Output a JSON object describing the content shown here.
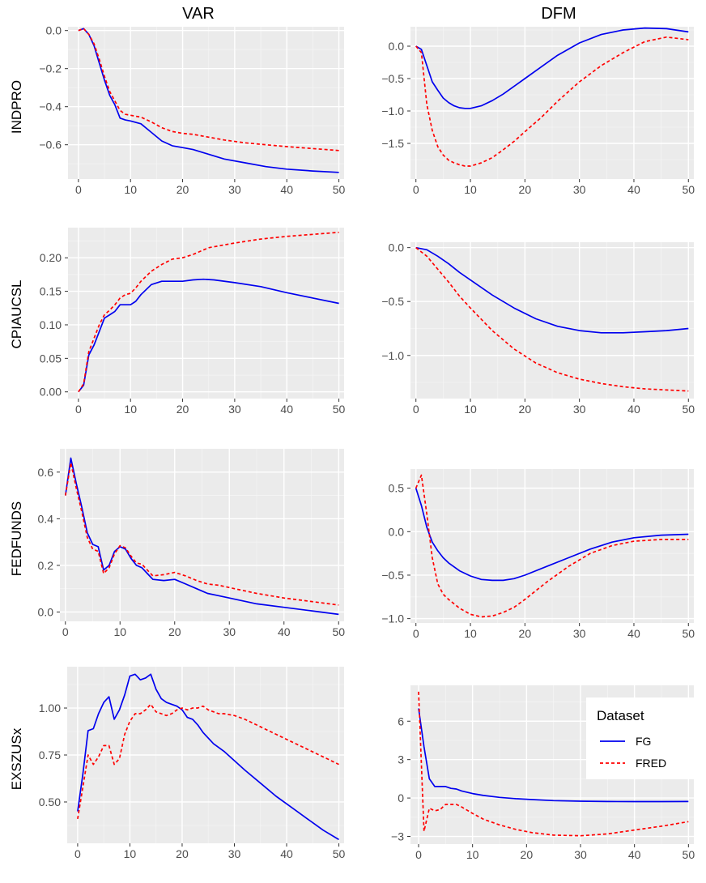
{
  "figure": {
    "columns": [
      "VAR",
      "DFM"
    ],
    "rows": [
      "INDPRO",
      "CPIAUCSL",
      "FEDFUNDS",
      "EXSZUSx"
    ]
  },
  "legend": {
    "title": "Dataset",
    "entries": [
      {
        "label": "FG",
        "color": "#0000ee",
        "dash": "solid"
      },
      {
        "label": "FRED",
        "color": "#ff0000",
        "dash": "dashed"
      }
    ]
  },
  "chart_data": [
    {
      "type": "line",
      "row": "INDPRO",
      "column": "VAR",
      "xlim": [
        -2,
        51
      ],
      "ylim": [
        -0.78,
        0.02
      ],
      "xticks": [
        0,
        10,
        20,
        30,
        40,
        50
      ],
      "xtick_labels": [
        "0",
        "10",
        "20",
        "30",
        "40",
        "50"
      ],
      "yticks": [
        0,
        -0.2,
        -0.4,
        -0.6
      ],
      "ytick_labels": [
        "0.0",
        "−0.2",
        "−0.4",
        "−0.6"
      ],
      "series": [
        {
          "name": "FG",
          "x": [
            0,
            1,
            2,
            3,
            4,
            5,
            6,
            7,
            8,
            9,
            10,
            12,
            14,
            16,
            18,
            20,
            22,
            25,
            28,
            32,
            36,
            40,
            45,
            50
          ],
          "y": [
            0,
            0.01,
            -0.02,
            -0.08,
            -0.17,
            -0.26,
            -0.34,
            -0.39,
            -0.46,
            -0.47,
            -0.475,
            -0.49,
            -0.535,
            -0.58,
            -0.605,
            -0.615,
            -0.625,
            -0.65,
            -0.675,
            -0.695,
            -0.715,
            -0.728,
            -0.738,
            -0.745
          ]
        },
        {
          "name": "FRED",
          "x": [
            0,
            1,
            2,
            3,
            4,
            5,
            6,
            7,
            8,
            9,
            10,
            12,
            14,
            16,
            18,
            20,
            22,
            25,
            28,
            32,
            36,
            40,
            45,
            50
          ],
          "y": [
            0,
            0.01,
            -0.02,
            -0.07,
            -0.15,
            -0.24,
            -0.32,
            -0.37,
            -0.42,
            -0.44,
            -0.445,
            -0.455,
            -0.48,
            -0.51,
            -0.53,
            -0.54,
            -0.545,
            -0.56,
            -0.575,
            -0.59,
            -0.6,
            -0.61,
            -0.62,
            -0.63
          ]
        }
      ]
    },
    {
      "type": "line",
      "row": "INDPRO",
      "column": "DFM",
      "xlim": [
        -1,
        51
      ],
      "ylim": [
        -2.05,
        0.3
      ],
      "xticks": [
        0,
        10,
        20,
        30,
        40,
        50
      ],
      "xtick_labels": [
        "0",
        "10",
        "20",
        "30",
        "40",
        "50"
      ],
      "yticks": [
        0,
        -0.5,
        -1,
        -1.5
      ],
      "ytick_labels": [
        "0.0",
        "−0.5",
        "−1.0",
        "−1.5"
      ],
      "series": [
        {
          "name": "FG",
          "x": [
            0,
            1,
            2,
            3,
            4,
            5,
            6,
            7,
            8,
            9,
            10,
            12,
            14,
            16,
            18,
            20,
            23,
            26,
            30,
            34,
            38,
            42,
            46,
            50
          ],
          "y": [
            0,
            -0.05,
            -0.3,
            -0.55,
            -0.68,
            -0.8,
            -0.87,
            -0.92,
            -0.95,
            -0.96,
            -0.96,
            -0.92,
            -0.84,
            -0.74,
            -0.62,
            -0.5,
            -0.32,
            -0.14,
            0.05,
            0.18,
            0.25,
            0.28,
            0.27,
            0.22
          ]
        },
        {
          "name": "FRED",
          "x": [
            0,
            1,
            2,
            3,
            4,
            5,
            6,
            7,
            8,
            9,
            10,
            12,
            14,
            16,
            18,
            20,
            23,
            26,
            30,
            34,
            38,
            42,
            46,
            50
          ],
          "y": [
            0,
            -0.1,
            -0.9,
            -1.3,
            -1.55,
            -1.68,
            -1.76,
            -1.8,
            -1.83,
            -1.85,
            -1.85,
            -1.8,
            -1.72,
            -1.6,
            -1.47,
            -1.32,
            -1.1,
            -0.85,
            -0.55,
            -0.3,
            -0.1,
            0.07,
            0.14,
            0.1
          ]
        }
      ]
    },
    {
      "type": "line",
      "row": "CPIAUCSL",
      "column": "VAR",
      "xlim": [
        -2,
        51
      ],
      "ylim": [
        -0.01,
        0.245
      ],
      "xticks": [
        0,
        10,
        20,
        30,
        40,
        50
      ],
      "xtick_labels": [
        "0",
        "10",
        "20",
        "30",
        "40",
        "50"
      ],
      "yticks": [
        0,
        0.05,
        0.1,
        0.15,
        0.2
      ],
      "ytick_labels": [
        "0.00",
        "0.05",
        "0.10",
        "0.15",
        "0.20"
      ],
      "series": [
        {
          "name": "FG",
          "x": [
            0,
            1,
            2,
            3,
            4,
            5,
            6,
            7,
            8,
            9,
            10,
            11,
            12,
            14,
            16,
            18,
            20,
            22,
            24,
            26,
            30,
            35,
            40,
            45,
            50
          ],
          "y": [
            0,
            0.01,
            0.055,
            0.07,
            0.09,
            0.11,
            0.115,
            0.12,
            0.13,
            0.13,
            0.13,
            0.135,
            0.145,
            0.16,
            0.165,
            0.165,
            0.165,
            0.167,
            0.168,
            0.167,
            0.163,
            0.157,
            0.148,
            0.14,
            0.132
          ]
        },
        {
          "name": "FRED",
          "x": [
            0,
            1,
            2,
            3,
            4,
            5,
            6,
            7,
            8,
            9,
            10,
            11,
            12,
            14,
            16,
            18,
            20,
            22,
            25,
            30,
            35,
            40,
            45,
            50
          ],
          "y": [
            0,
            0.012,
            0.06,
            0.08,
            0.1,
            0.115,
            0.122,
            0.13,
            0.14,
            0.145,
            0.147,
            0.155,
            0.165,
            0.18,
            0.19,
            0.198,
            0.2,
            0.205,
            0.215,
            0.222,
            0.228,
            0.232,
            0.235,
            0.238
          ]
        }
      ]
    },
    {
      "type": "line",
      "row": "CPIAUCSL",
      "column": "DFM",
      "xlim": [
        -1,
        51
      ],
      "ylim": [
        -1.4,
        0.05
      ],
      "xticks": [
        0,
        10,
        20,
        30,
        40,
        50
      ],
      "xtick_labels": [
        "0",
        "10",
        "20",
        "30",
        "40",
        "50"
      ],
      "yticks": [
        0,
        -0.5,
        -1
      ],
      "ytick_labels": [
        "0.0",
        "−0.5",
        "−1.0"
      ],
      "series": [
        {
          "name": "FG",
          "x": [
            0,
            2,
            4,
            6,
            8,
            10,
            14,
            18,
            22,
            26,
            30,
            34,
            38,
            42,
            46,
            50
          ],
          "y": [
            0,
            -0.02,
            -0.08,
            -0.15,
            -0.23,
            -0.3,
            -0.44,
            -0.56,
            -0.66,
            -0.73,
            -0.77,
            -0.79,
            -0.79,
            -0.78,
            -0.77,
            -0.75
          ]
        },
        {
          "name": "FRED",
          "x": [
            0,
            2,
            4,
            6,
            8,
            10,
            14,
            18,
            22,
            26,
            30,
            34,
            38,
            42,
            46,
            50
          ],
          "y": [
            0,
            -0.08,
            -0.2,
            -0.32,
            -0.45,
            -0.56,
            -0.77,
            -0.94,
            -1.07,
            -1.16,
            -1.22,
            -1.26,
            -1.29,
            -1.31,
            -1.32,
            -1.33
          ]
        }
      ]
    },
    {
      "type": "line",
      "row": "FEDFUNDS",
      "column": "VAR",
      "xlim": [
        -1,
        51
      ],
      "ylim": [
        -0.04,
        0.7
      ],
      "xticks": [
        0,
        10,
        20,
        30,
        40,
        50
      ],
      "xtick_labels": [
        "0",
        "10",
        "20",
        "30",
        "40",
        "50"
      ],
      "yticks": [
        0,
        0.2,
        0.4,
        0.6
      ],
      "ytick_labels": [
        "0.0",
        "0.2",
        "0.4",
        "0.6"
      ],
      "series": [
        {
          "name": "FG",
          "x": [
            0,
            1,
            2,
            3,
            4,
            5,
            6,
            7,
            8,
            9,
            10,
            11,
            12,
            13,
            14,
            15,
            16,
            18,
            20,
            22,
            24,
            26,
            28,
            30,
            35,
            40,
            45,
            50
          ],
          "y": [
            0.5,
            0.66,
            0.55,
            0.45,
            0.34,
            0.29,
            0.28,
            0.18,
            0.2,
            0.26,
            0.28,
            0.27,
            0.23,
            0.2,
            0.19,
            0.165,
            0.14,
            0.135,
            0.14,
            0.12,
            0.1,
            0.08,
            0.07,
            0.06,
            0.035,
            0.02,
            0.005,
            -0.01
          ]
        },
        {
          "name": "FRED",
          "x": [
            0,
            1,
            2,
            3,
            4,
            5,
            6,
            7,
            8,
            9,
            10,
            11,
            12,
            13,
            14,
            15,
            16,
            18,
            20,
            22,
            24,
            26,
            28,
            30,
            35,
            40,
            45,
            50
          ],
          "y": [
            0.5,
            0.64,
            0.53,
            0.43,
            0.32,
            0.27,
            0.26,
            0.165,
            0.19,
            0.25,
            0.285,
            0.275,
            0.24,
            0.21,
            0.205,
            0.18,
            0.155,
            0.16,
            0.17,
            0.155,
            0.135,
            0.12,
            0.115,
            0.105,
            0.08,
            0.06,
            0.045,
            0.03
          ]
        }
      ]
    },
    {
      "type": "line",
      "row": "FEDFUNDS",
      "column": "DFM",
      "xlim": [
        -1,
        51
      ],
      "ylim": [
        -1.05,
        0.72
      ],
      "xticks": [
        0,
        10,
        20,
        30,
        40,
        50
      ],
      "xtick_labels": [
        "0",
        "10",
        "20",
        "30",
        "40",
        "50"
      ],
      "yticks": [
        0.5,
        0,
        -0.5,
        -1
      ],
      "ytick_labels": [
        "0.5",
        "0.0",
        "−0.5",
        "−1.0"
      ],
      "series": [
        {
          "name": "FG",
          "x": [
            0,
            1,
            2,
            3,
            4,
            5,
            6,
            8,
            10,
            12,
            14,
            16,
            18,
            20,
            24,
            28,
            32,
            36,
            40,
            45,
            50
          ],
          "y": [
            0.5,
            0.3,
            0.05,
            -0.12,
            -0.22,
            -0.3,
            -0.36,
            -0.45,
            -0.51,
            -0.55,
            -0.56,
            -0.56,
            -0.54,
            -0.5,
            -0.4,
            -0.3,
            -0.2,
            -0.12,
            -0.07,
            -0.04,
            -0.03
          ]
        },
        {
          "name": "FRED",
          "x": [
            0,
            1,
            2,
            3,
            4,
            5,
            6,
            8,
            10,
            12,
            14,
            16,
            18,
            20,
            24,
            28,
            32,
            36,
            40,
            45,
            50
          ],
          "y": [
            0.5,
            0.65,
            0.2,
            -0.3,
            -0.6,
            -0.72,
            -0.78,
            -0.88,
            -0.95,
            -0.98,
            -0.97,
            -0.93,
            -0.87,
            -0.78,
            -0.58,
            -0.4,
            -0.25,
            -0.16,
            -0.11,
            -0.09,
            -0.09
          ]
        }
      ]
    },
    {
      "type": "line",
      "row": "EXSZUSx",
      "column": "VAR",
      "xlim": [
        -2,
        51
      ],
      "ylim": [
        0.28,
        1.22
      ],
      "xticks": [
        0,
        10,
        20,
        30,
        40,
        50
      ],
      "xtick_labels": [
        "0",
        "10",
        "20",
        "30",
        "40",
        "50"
      ],
      "yticks": [
        0.5,
        0.75,
        1
      ],
      "ytick_labels": [
        "0.50",
        "0.75",
        "1.00"
      ],
      "series": [
        {
          "name": "FG",
          "x": [
            0,
            1,
            2,
            3,
            4,
            5,
            6,
            7,
            8,
            9,
            10,
            11,
            12,
            13,
            14,
            15,
            16,
            17,
            18,
            19,
            20,
            21,
            22,
            23,
            24,
            25,
            26,
            27,
            28,
            30,
            32,
            35,
            38,
            41,
            44,
            47,
            50
          ],
          "y": [
            0.45,
            0.65,
            0.88,
            0.89,
            0.97,
            1.03,
            1.06,
            0.94,
            0.99,
            1.07,
            1.17,
            1.18,
            1.15,
            1.16,
            1.18,
            1.1,
            1.05,
            1.03,
            1.02,
            1.01,
            0.99,
            0.95,
            0.94,
            0.91,
            0.87,
            0.84,
            0.81,
            0.79,
            0.77,
            0.72,
            0.67,
            0.6,
            0.53,
            0.47,
            0.41,
            0.35,
            0.3
          ]
        },
        {
          "name": "FRED",
          "x": [
            0,
            1,
            2,
            3,
            4,
            5,
            6,
            7,
            8,
            9,
            10,
            11,
            12,
            13,
            14,
            15,
            16,
            17,
            18,
            19,
            20,
            21,
            22,
            23,
            24,
            25,
            26,
            27,
            28,
            30,
            32,
            35,
            38,
            41,
            44,
            47,
            50
          ],
          "y": [
            0.41,
            0.58,
            0.75,
            0.7,
            0.74,
            0.8,
            0.8,
            0.7,
            0.73,
            0.86,
            0.93,
            0.97,
            0.97,
            0.99,
            1.02,
            0.98,
            0.97,
            0.96,
            0.97,
            0.99,
            1.0,
            0.99,
            1.0,
            1.0,
            1.01,
            0.99,
            0.98,
            0.97,
            0.97,
            0.96,
            0.94,
            0.9,
            0.86,
            0.82,
            0.78,
            0.74,
            0.7
          ]
        }
      ]
    },
    {
      "type": "line",
      "row": "EXSZUSx",
      "column": "DFM",
      "xlim": [
        -1.5,
        51
      ],
      "ylim": [
        -3.6,
        8.8
      ],
      "xticks": [
        0,
        10,
        20,
        30,
        40,
        50
      ],
      "xtick_labels": [
        "0",
        "10",
        "20",
        "30",
        "40",
        "50"
      ],
      "yticks": [
        6,
        3,
        0,
        -3
      ],
      "ytick_labels": [
        "6",
        "3",
        "0",
        "−3"
      ],
      "series": [
        {
          "name": "FG",
          "x": [
            0,
            1,
            2,
            3,
            4,
            5,
            6,
            7,
            8,
            10,
            12,
            15,
            18,
            21,
            25,
            30,
            35,
            40,
            45,
            50
          ],
          "y": [
            7,
            4,
            1.5,
            0.9,
            0.9,
            0.9,
            0.75,
            0.7,
            0.55,
            0.35,
            0.2,
            0.05,
            -0.05,
            -0.12,
            -0.2,
            -0.25,
            -0.27,
            -0.28,
            -0.28,
            -0.27
          ]
        },
        {
          "name": "FRED",
          "x": [
            0,
            1,
            2,
            3,
            4,
            5,
            6,
            7,
            8,
            10,
            12,
            15,
            18,
            21,
            25,
            30,
            35,
            40,
            45,
            50
          ],
          "y": [
            8.3,
            -2.6,
            -0.8,
            -1,
            -0.9,
            -0.5,
            -0.5,
            -0.5,
            -0.7,
            -1.2,
            -1.65,
            -2.1,
            -2.45,
            -2.7,
            -2.9,
            -2.95,
            -2.8,
            -2.5,
            -2.2,
            -1.85
          ]
        }
      ]
    }
  ]
}
